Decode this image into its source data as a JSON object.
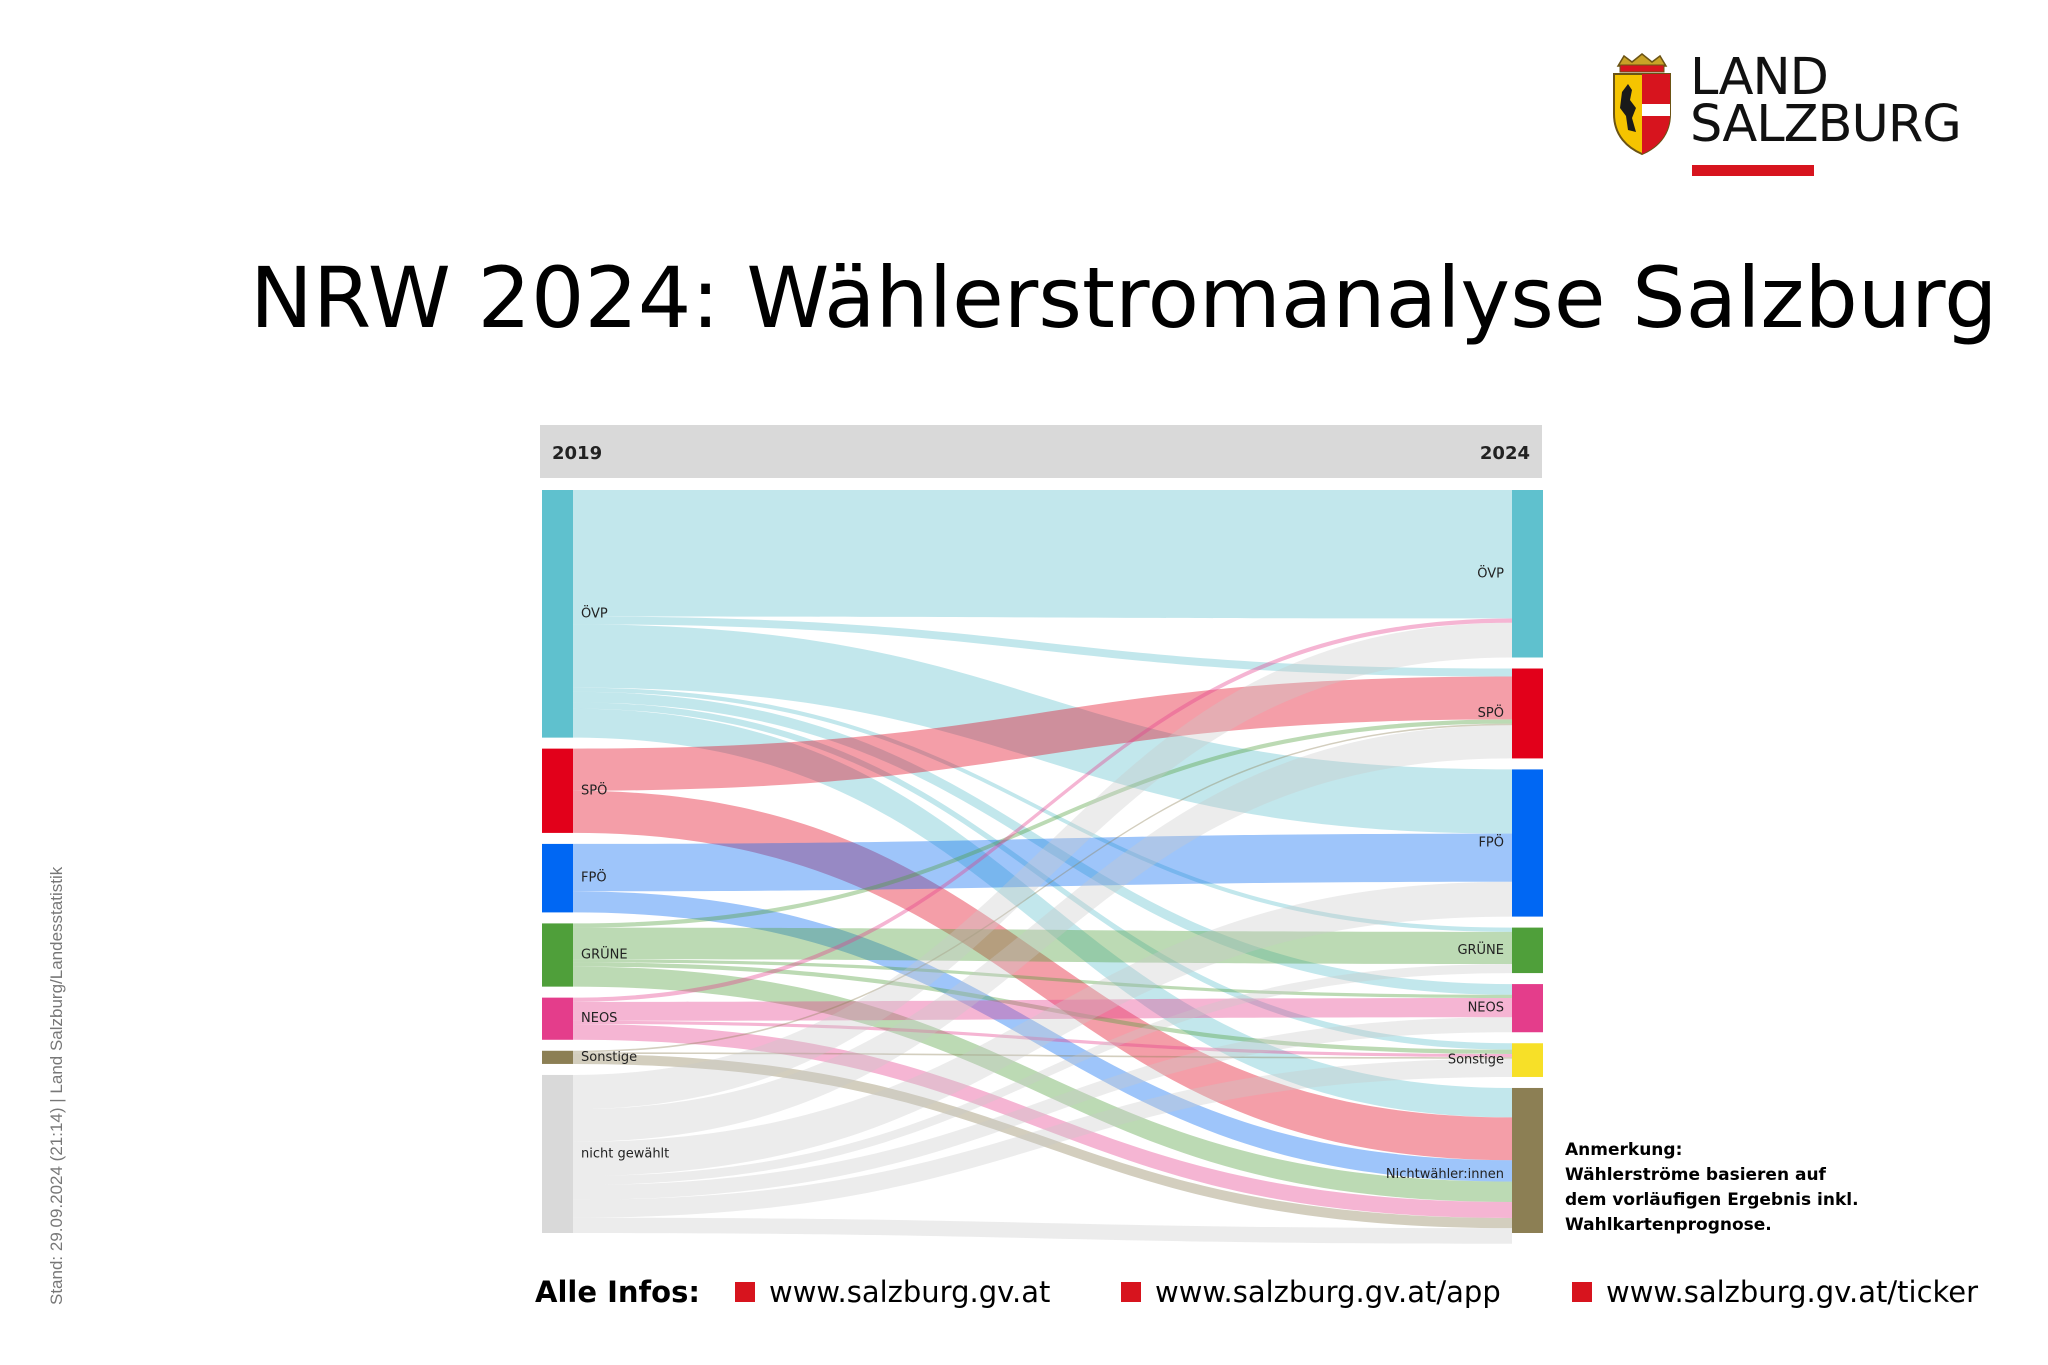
{
  "logo": {
    "line1": "LAND",
    "line2": "SALZBURG",
    "emblem": "salzburg-coat-of-arms",
    "accent": "#d7141e"
  },
  "title": "NRW 2024: Wählerstromanalyse Salzburg",
  "side_note": "Stand: 29.09.2024 (21:14)  |  Land Salzburg/Landesstatistik",
  "chart_data": {
    "type": "sankey",
    "left_header": "2019",
    "right_header": "2024",
    "sources": [
      {
        "name": "ÖVP",
        "color": "#5fc1ce",
        "value": 47
      },
      {
        "name": "SPÖ",
        "color": "#e2001a",
        "value": 16
      },
      {
        "name": "FPÖ",
        "color": "#0067f3",
        "value": 13
      },
      {
        "name": "GRÜNE",
        "color": "#4f9f3a",
        "value": 12
      },
      {
        "name": "NEOS",
        "color": "#e43d8b",
        "value": 8
      },
      {
        "name": "Sonstige",
        "color": "#8c7f54",
        "value": 2.5
      },
      {
        "name": "nicht gewählt",
        "color": "#d9d9d9",
        "value": 30
      }
    ],
    "targets": [
      {
        "name": "ÖVP",
        "color": "#5fc1ce",
        "value": 31.3
      },
      {
        "name": "SPÖ",
        "color": "#e2001a",
        "value": 16.8
      },
      {
        "name": "FPÖ",
        "color": "#0067f3",
        "value": 27.5
      },
      {
        "name": "GRÜNE",
        "color": "#4f9f3a",
        "value": 8.5
      },
      {
        "name": "NEOS",
        "color": "#e43d8b",
        "value": 9
      },
      {
        "name": "Sonstige",
        "color": "#f7e028",
        "value": 6.3
      },
      {
        "name": "Nichtwähler:innen",
        "color": "#8c7f54",
        "value": 27.1
      }
    ],
    "flows": [
      {
        "from": "ÖVP",
        "to": "ÖVP",
        "value": 24
      },
      {
        "from": "ÖVP",
        "to": "SPÖ",
        "value": 1.5
      },
      {
        "from": "ÖVP",
        "to": "FPÖ",
        "value": 12
      },
      {
        "from": "ÖVP",
        "to": "GRÜNE",
        "value": 0.8
      },
      {
        "from": "ÖVP",
        "to": "NEOS",
        "value": 2
      },
      {
        "from": "ÖVP",
        "to": "Sonstige",
        "value": 1.2
      },
      {
        "from": "ÖVP",
        "to": "Nichtwähler:innen",
        "value": 5.5
      },
      {
        "from": "SPÖ",
        "to": "SPÖ",
        "value": 8
      },
      {
        "from": "SPÖ",
        "to": "Nichtwähler:innen",
        "value": 8
      },
      {
        "from": "FPÖ",
        "to": "FPÖ",
        "value": 9
      },
      {
        "from": "FPÖ",
        "to": "Nichtwähler:innen",
        "value": 4
      },
      {
        "from": "GRÜNE",
        "to": "SPÖ",
        "value": 0.8
      },
      {
        "from": "GRÜNE",
        "to": "GRÜNE",
        "value": 6
      },
      {
        "from": "GRÜNE",
        "to": "NEOS",
        "value": 0.6
      },
      {
        "from": "GRÜNE",
        "to": "Sonstige",
        "value": 0.8
      },
      {
        "from": "GRÜNE",
        "to": "Nichtwähler:innen",
        "value": 3.8
      },
      {
        "from": "NEOS",
        "to": "ÖVP",
        "value": 0.8
      },
      {
        "from": "NEOS",
        "to": "NEOS",
        "value": 3.6
      },
      {
        "from": "NEOS",
        "to": "Sonstige",
        "value": 0.6
      },
      {
        "from": "NEOS",
        "to": "Nichtwähler:innen",
        "value": 3
      },
      {
        "from": "Sonstige",
        "to": "SPÖ",
        "value": 0.3
      },
      {
        "from": "Sonstige",
        "to": "Sonstige",
        "value": 0.3
      },
      {
        "from": "Sonstige",
        "to": "Nichtwähler:innen",
        "value": 1.9
      },
      {
        "from": "nicht gewählt",
        "to": "ÖVP",
        "value": 6.5
      },
      {
        "from": "nicht gewählt",
        "to": "SPÖ",
        "value": 6.2
      },
      {
        "from": "nicht gewählt",
        "to": "FPÖ",
        "value": 6.5
      },
      {
        "from": "nicht gewählt",
        "to": "GRÜNE",
        "value": 1.7
      },
      {
        "from": "nicht gewählt",
        "to": "NEOS",
        "value": 2.8
      },
      {
        "from": "nicht gewählt",
        "to": "Sonstige",
        "value": 3.4
      },
      {
        "from": "nicht gewählt",
        "to": "Nichtwähler:innen",
        "value": 2.9
      }
    ]
  },
  "note": {
    "heading": "Anmerkung:",
    "lines": [
      "Wählerströme basieren auf",
      "dem vorläufigen Ergebnis inkl.",
      "Wahlkartenprognose."
    ]
  },
  "footer": {
    "label": "Alle Infos:",
    "links": [
      "www.salzburg.gv.at",
      "www.salzburg.gv.at/app",
      "www.salzburg.gv.at/ticker"
    ]
  }
}
